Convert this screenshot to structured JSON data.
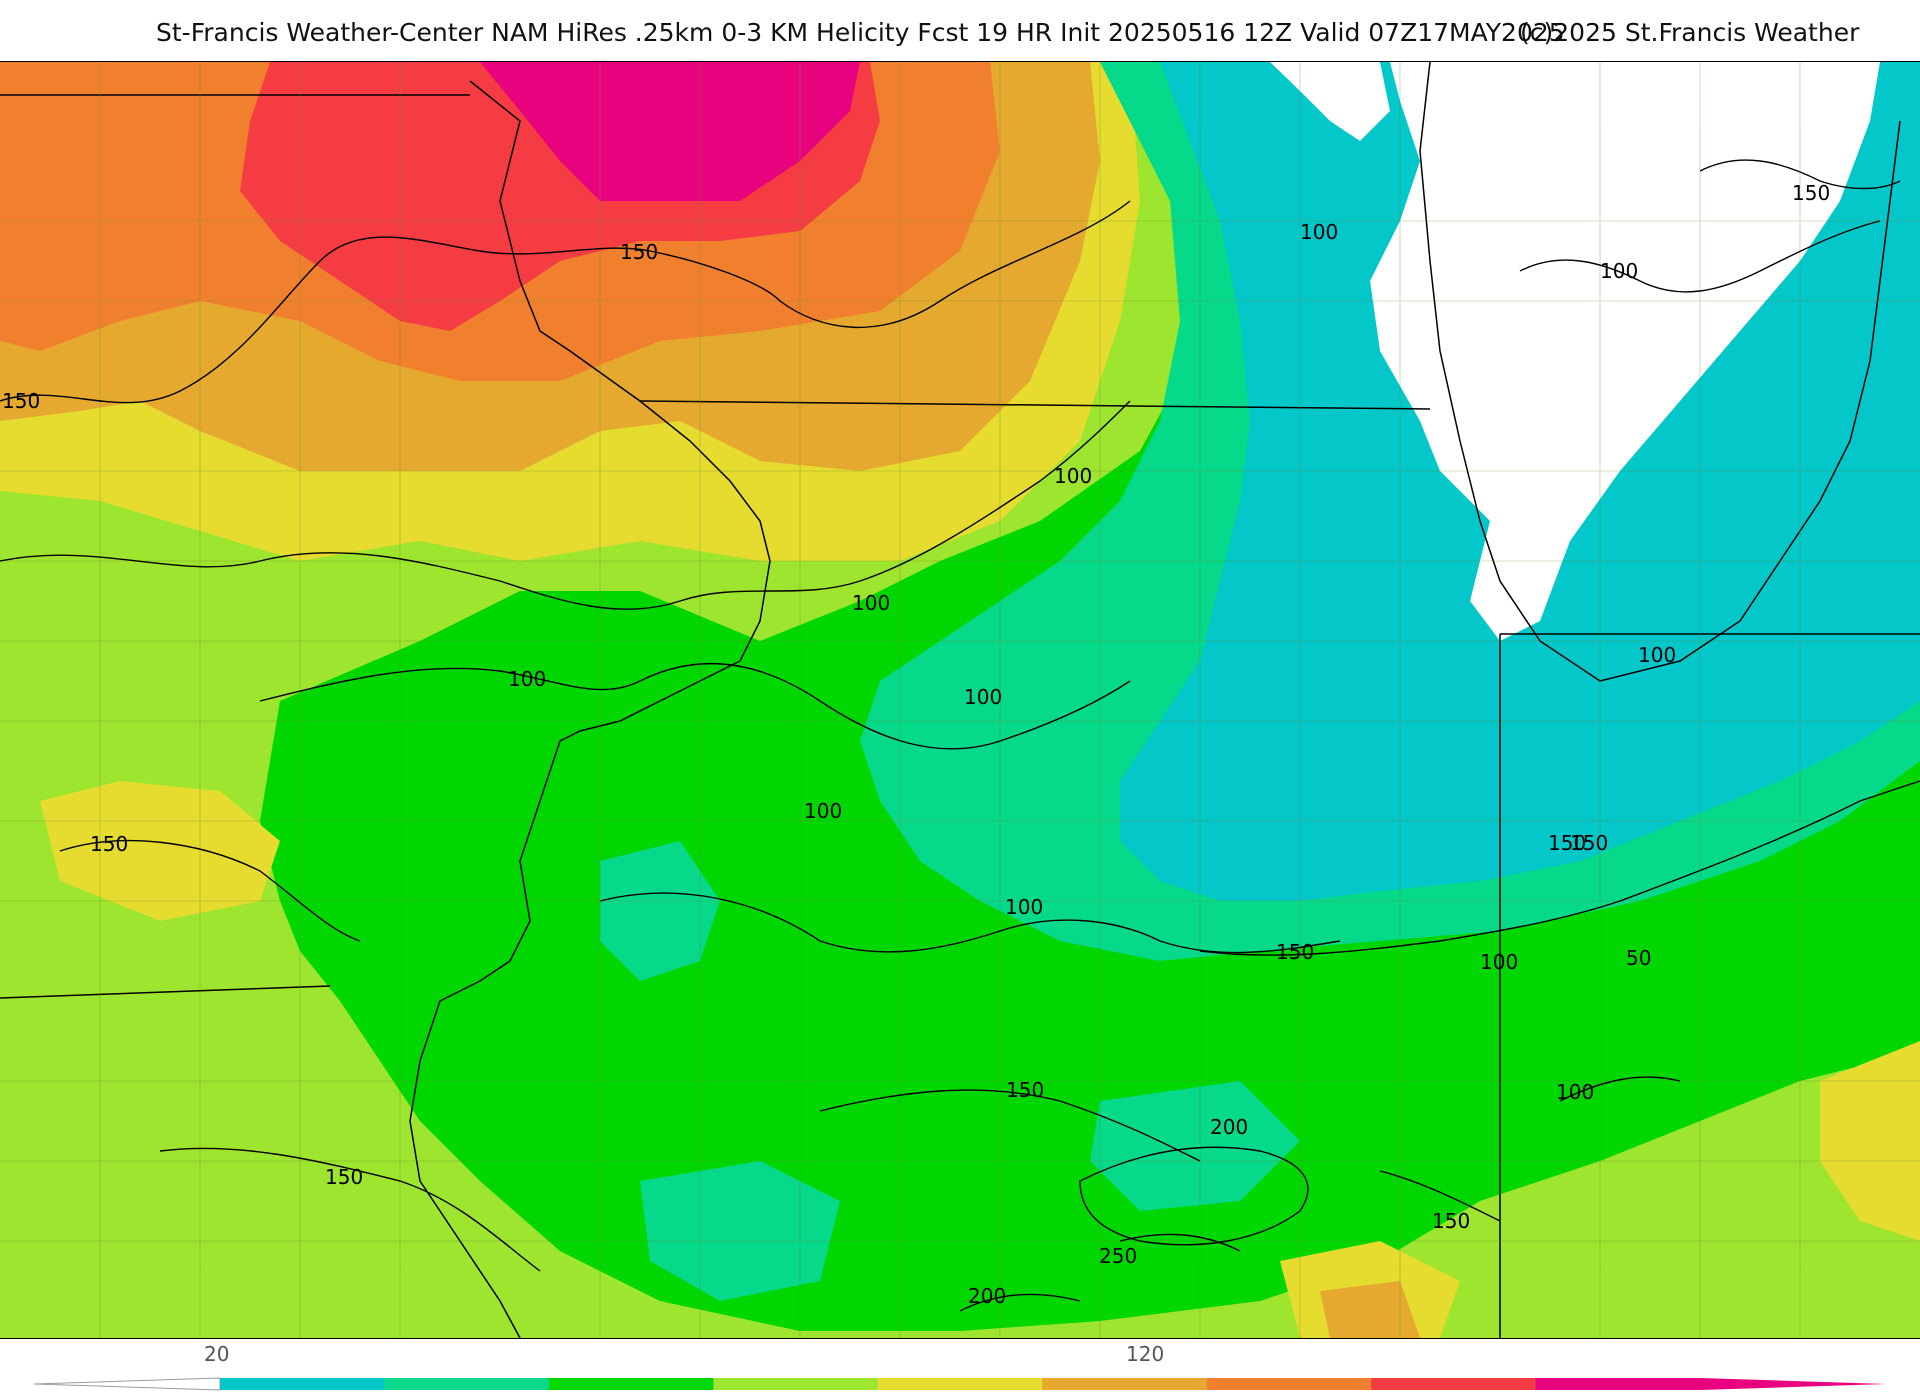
{
  "header": {
    "title": "St-Francis Weather-Center NAM HiRes .25km 0-3 KM Helicity Fcst 19 HR Init 20250516 12Z  Valid 07Z17MAY2025",
    "copyright": "(c)2025 St.Francis Weather"
  },
  "contour_labels": [
    "150",
    "150",
    "150",
    "150",
    "100",
    "100",
    "100",
    "100",
    "100",
    "100",
    "100",
    "150",
    "100",
    "150",
    "100",
    "150",
    "100",
    "50",
    "150",
    "200",
    "250",
    "200",
    "150",
    "100",
    "150"
  ],
  "colorbar": {
    "tick_labels": [
      "20",
      "120"
    ],
    "colors": [
      "#03c7c9",
      "#06d98a",
      "#00d600",
      "#9de52f",
      "#e5dc2f",
      "#e5a92f",
      "#f0802e",
      "#f43c42",
      "#e8037f"
    ]
  }
}
